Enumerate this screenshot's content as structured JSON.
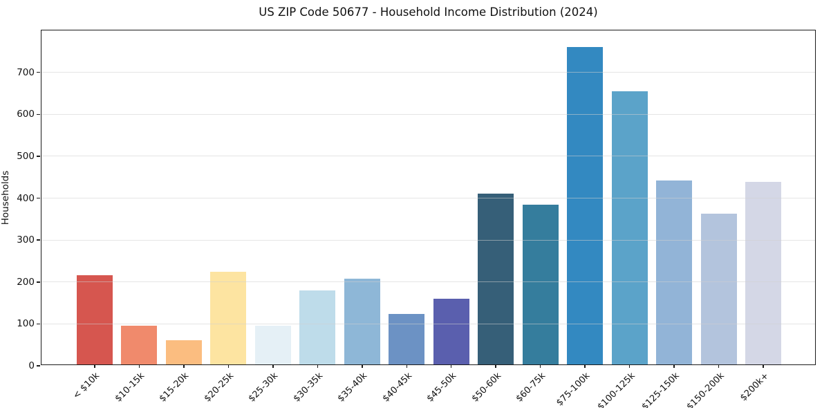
{
  "chart_data": {
    "type": "bar",
    "title": "US ZIP Code 50677 - Household Income Distribution (2024)",
    "xlabel": "",
    "ylabel": "Households",
    "categories": [
      "< $10k",
      "$10-15k",
      "$15-20k",
      "$20-25k",
      "$25-30k",
      "$30-35k",
      "$35-40k",
      "$40-45k",
      "$45-50k",
      "$50-60k",
      "$60-75k",
      "$75-100k",
      "$100-125k",
      "$125-150k",
      "$150-200k",
      "$200k+"
    ],
    "values": [
      213,
      93,
      58,
      221,
      92,
      176,
      204,
      121,
      157,
      408,
      381,
      757,
      651,
      438,
      360,
      436
    ],
    "bar_colors": [
      "#d6564f",
      "#f08a6c",
      "#fbbd80",
      "#fde4a1",
      "#e5f0f6",
      "#bedcea",
      "#8eb7d7",
      "#6c92c4",
      "#5a5fae",
      "#365f78",
      "#357d9d",
      "#3389c1",
      "#5ba3c9",
      "#92b4d7",
      "#b3c4dd",
      "#d4d7e6"
    ],
    "ylim": [
      0,
      800
    ],
    "yticks": [
      0,
      100,
      200,
      300,
      400,
      500,
      600,
      700
    ],
    "grid": "horizontal",
    "legend": "none",
    "background_color": "#ffffff",
    "spine_color": "#1a1a1a",
    "grid_color": "#e7e7e7",
    "bar_width_fraction": 0.8
  }
}
